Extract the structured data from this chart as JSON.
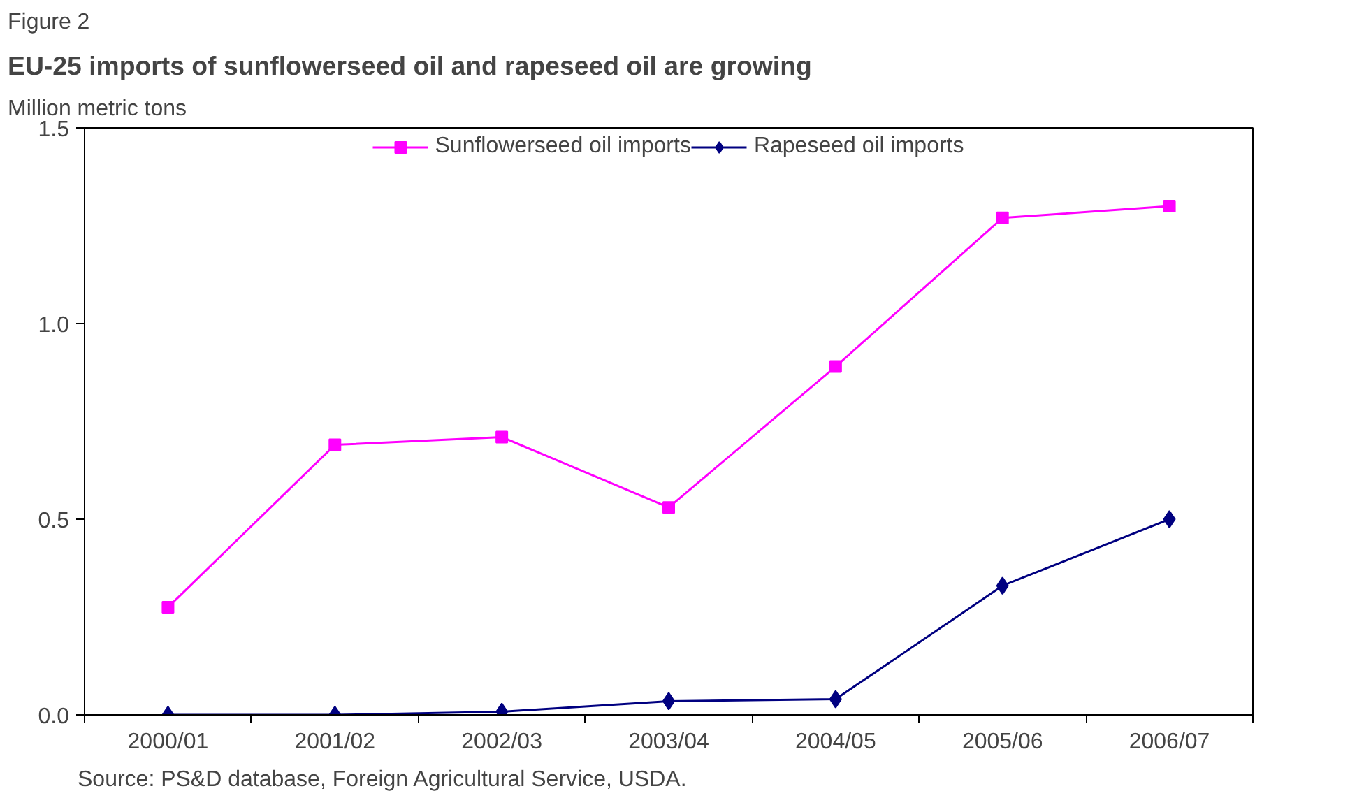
{
  "chart_data": {
    "type": "line",
    "title": "EU-25 imports of sunflowerseed oil and rapeseed oil are growing",
    "subtitle": "Figure 2",
    "ylabel": "Million metric tons",
    "categories": [
      "2000/01",
      "2001/02",
      "2002/03",
      "2003/04",
      "2004/05",
      "2005/06",
      "2006/07"
    ],
    "series": [
      {
        "name": "Sunflowerseed oil imports",
        "color": "#ff00ff",
        "marker": "square",
        "values": [
          0.275,
          0.69,
          0.71,
          0.53,
          0.89,
          1.27,
          1.3
        ]
      },
      {
        "name": "Rapeseed oil imports",
        "color": "#000080",
        "marker": "diamond",
        "values": [
          0.0,
          0.0,
          0.008,
          0.035,
          0.04,
          0.33,
          0.5
        ]
      }
    ],
    "ylim": [
      0,
      1.5
    ],
    "yticks": [
      {
        "value": 0,
        "label": "0.0"
      },
      {
        "value": 0.5,
        "label": "0.5"
      },
      {
        "value": 1,
        "label": "1.0"
      },
      {
        "value": 1.5,
        "label": "1.5"
      }
    ],
    "grid": false,
    "legend": "top",
    "line_style": "solid",
    "annotations": [
      "Source: PS&D database, Foreign Agricultural Service, USDA."
    ]
  }
}
